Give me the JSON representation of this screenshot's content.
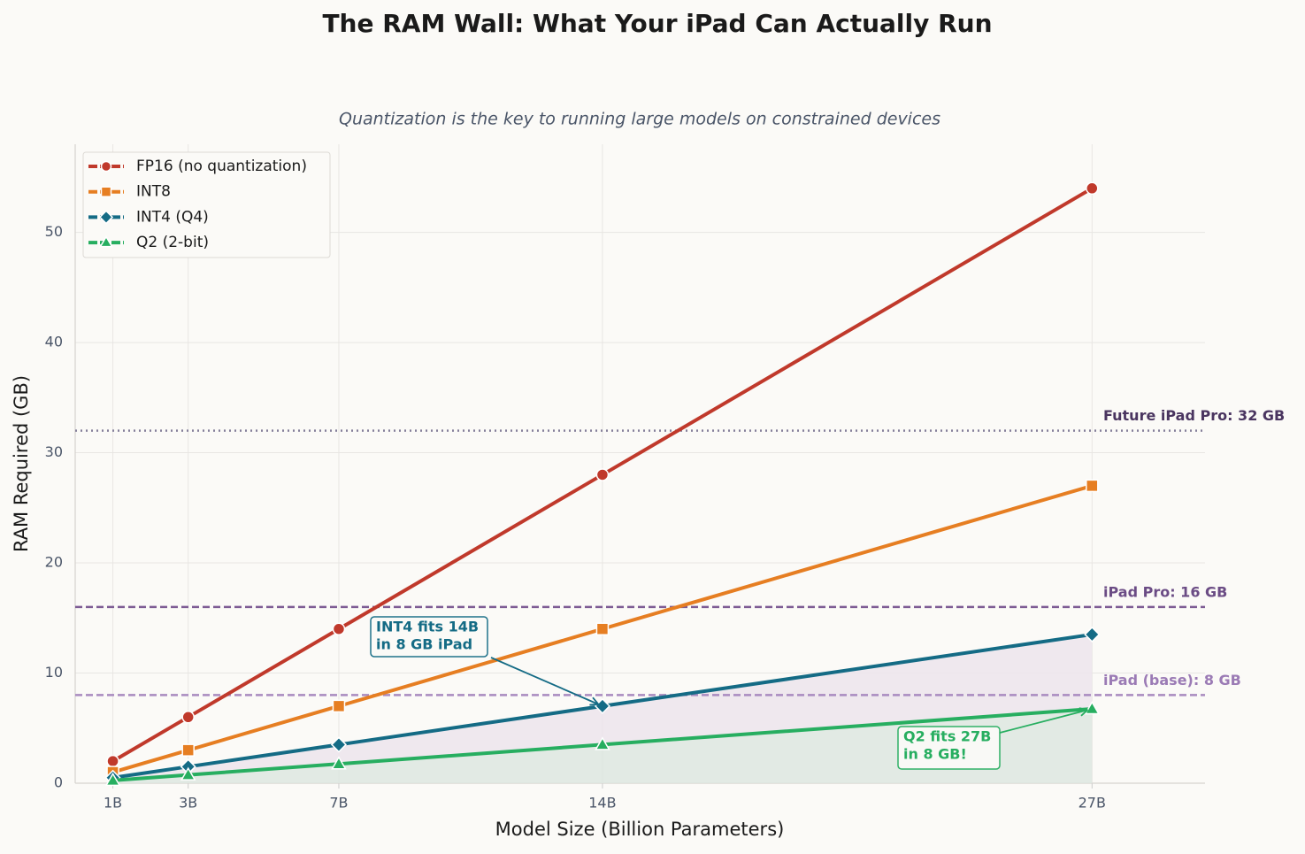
{
  "chart_data": {
    "type": "line",
    "title": "The RAM Wall: What Your iPad Can Actually Run",
    "subtitle": "Quantization is the key to running large models on constrained devices",
    "x_label": "Model Size (Billion Parameters)",
    "y_label": "RAM Required (GB)",
    "x": [
      1,
      3,
      7,
      14,
      27
    ],
    "xlim": [
      0,
      30
    ],
    "xticks": [
      {
        "value": 1,
        "label": "1B"
      },
      {
        "value": 3,
        "label": "3B"
      },
      {
        "value": 7,
        "label": "7B"
      },
      {
        "value": 14,
        "label": "14B"
      },
      {
        "value": 27,
        "label": "27B"
      }
    ],
    "ylim": [
      0,
      58
    ],
    "yticks": [
      0,
      10,
      20,
      30,
      40,
      50
    ],
    "grid": true,
    "legend": "upper left",
    "series": [
      {
        "name": "FP16 (no quantization)",
        "color": "#c0392b",
        "marker": "circle",
        "values": [
          2,
          6,
          14,
          28,
          54
        ]
      },
      {
        "name": "INT8",
        "color": "#e67e22",
        "marker": "square",
        "values": [
          1,
          3,
          7,
          14,
          27
        ]
      },
      {
        "name": "INT4 (Q4)",
        "color": "#146b85",
        "marker": "diamond",
        "fill_color": "#ece4ec",
        "values": [
          0.5,
          1.5,
          3.5,
          7,
          13.5
        ]
      },
      {
        "name": "Q2 (2-bit)",
        "color": "#27ae60",
        "marker": "triangle",
        "fill_color": "#dde6e0",
        "values": [
          0.25,
          0.75,
          1.75,
          3.5,
          6.75
        ]
      }
    ],
    "hlines": [
      {
        "value": 32,
        "label": "Future iPad Pro: 32 GB",
        "color": "#85809a",
        "text_color": "#4a3560",
        "style": "dotted"
      },
      {
        "value": 16,
        "label": "iPad Pro: 16 GB",
        "color": "#7d5b94",
        "text_color": "#6b4c85",
        "style": "dashed"
      },
      {
        "value": 8,
        "label": "iPad (base): 8 GB",
        "color": "#a98bc0",
        "text_color": "#9b7bb5",
        "style": "dashed"
      }
    ],
    "annotations": [
      {
        "lines": [
          "INT4 fits 14B",
          "in 8 GB iPad"
        ],
        "target": [
          14,
          7
        ],
        "color": "#146b85"
      },
      {
        "lines": [
          "Q2 fits 27B",
          "in 8 GB!"
        ],
        "target": [
          27,
          6.75
        ],
        "color": "#27ae60"
      }
    ]
  }
}
